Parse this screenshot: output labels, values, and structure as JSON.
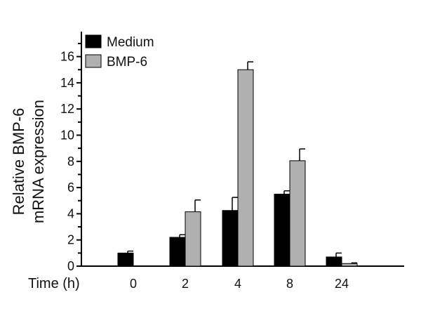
{
  "chart_data": {
    "type": "bar",
    "title": "",
    "xlabel": "Time (h)",
    "ylabel_lines": [
      "Relative BMP-6",
      "mRNA expression"
    ],
    "categories": [
      "0",
      "2",
      "4",
      "8",
      "24"
    ],
    "ylim": [
      0,
      17
    ],
    "yticks": [
      0,
      2,
      4,
      6,
      8,
      10,
      12,
      14,
      16
    ],
    "grid": false,
    "legend_position": "top-left",
    "series": [
      {
        "name": "Medium",
        "color": "#000000",
        "values": [
          1.0,
          2.2,
          4.25,
          5.5,
          0.7
        ],
        "errors": [
          0.15,
          0.2,
          1.0,
          0.25,
          0.3
        ]
      },
      {
        "name": "BMP-6",
        "color": "#b0b0b0",
        "values": [
          0.0,
          4.15,
          15.0,
          8.05,
          0.2
        ],
        "errors": [
          0.0,
          0.9,
          0.6,
          0.9,
          0.05
        ]
      }
    ]
  }
}
